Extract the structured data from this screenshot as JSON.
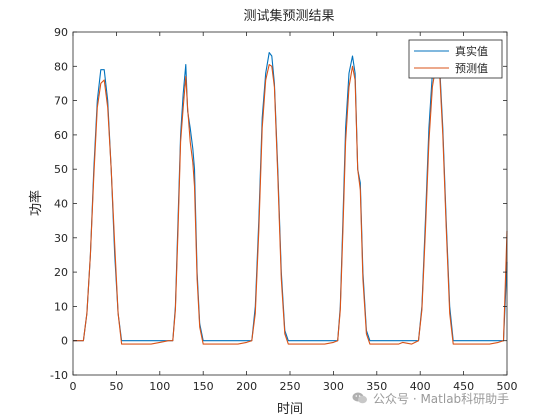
{
  "chart_data": {
    "type": "line",
    "title": "测试集预测结果",
    "xlabel": "时间",
    "ylabel": "功率",
    "xlim": [
      0,
      500
    ],
    "ylim": [
      -10,
      90
    ],
    "x_ticks": [
      0,
      50,
      100,
      150,
      200,
      250,
      300,
      350,
      400,
      450,
      500
    ],
    "y_ticks": [
      -10,
      0,
      10,
      20,
      30,
      40,
      50,
      60,
      70,
      80,
      90
    ],
    "grid": false,
    "legend_position": "top-right",
    "series": [
      {
        "name": "真实值",
        "color": "#0072BD",
        "points": [
          [
            0,
            0
          ],
          [
            8,
            0
          ],
          [
            12,
            0
          ],
          [
            16,
            8
          ],
          [
            20,
            25
          ],
          [
            24,
            50
          ],
          [
            28,
            70
          ],
          [
            32,
            79
          ],
          [
            36,
            79
          ],
          [
            40,
            70
          ],
          [
            44,
            50
          ],
          [
            48,
            25
          ],
          [
            52,
            8
          ],
          [
            56,
            0
          ],
          [
            60,
            0
          ],
          [
            70,
            0
          ],
          [
            80,
            0
          ],
          [
            90,
            0
          ],
          [
            100,
            0
          ],
          [
            110,
            0
          ],
          [
            115,
            0
          ],
          [
            118,
            10
          ],
          [
            121,
            35
          ],
          [
            124,
            60
          ],
          [
            127,
            72
          ],
          [
            130,
            80.5
          ],
          [
            132,
            67
          ],
          [
            135,
            62
          ],
          [
            138,
            56
          ],
          [
            140,
            50
          ],
          [
            143,
            20
          ],
          [
            146,
            5
          ],
          [
            150,
            0
          ],
          [
            160,
            0
          ],
          [
            170,
            0
          ],
          [
            180,
            0
          ],
          [
            190,
            0
          ],
          [
            200,
            0
          ],
          [
            206,
            0
          ],
          [
            210,
            10
          ],
          [
            214,
            35
          ],
          [
            218,
            65
          ],
          [
            222,
            78
          ],
          [
            226,
            84
          ],
          [
            229,
            83
          ],
          [
            232,
            75
          ],
          [
            236,
            50
          ],
          [
            240,
            20
          ],
          [
            244,
            3
          ],
          [
            248,
            0
          ],
          [
            260,
            0
          ],
          [
            270,
            0
          ],
          [
            280,
            0
          ],
          [
            290,
            0
          ],
          [
            300,
            0
          ],
          [
            305,
            0
          ],
          [
            308,
            10
          ],
          [
            311,
            35
          ],
          [
            314,
            62
          ],
          [
            318,
            78
          ],
          [
            322,
            83
          ],
          [
            325,
            78
          ],
          [
            328,
            50
          ],
          [
            331,
            46
          ],
          [
            334,
            20
          ],
          [
            338,
            3
          ],
          [
            342,
            0
          ],
          [
            350,
            0
          ],
          [
            360,
            0
          ],
          [
            370,
            0
          ],
          [
            380,
            0
          ],
          [
            390,
            0
          ],
          [
            398,
            0
          ],
          [
            402,
            10
          ],
          [
            406,
            35
          ],
          [
            410,
            62
          ],
          [
            414,
            78
          ],
          [
            418,
            84
          ],
          [
            422,
            82
          ],
          [
            426,
            62
          ],
          [
            430,
            35
          ],
          [
            434,
            10
          ],
          [
            438,
            0
          ],
          [
            450,
            0
          ],
          [
            460,
            0
          ],
          [
            470,
            0
          ],
          [
            480,
            0
          ],
          [
            490,
            0
          ],
          [
            496,
            0
          ],
          [
            500,
            23
          ]
        ]
      },
      {
        "name": "预测值",
        "color": "#D95319",
        "points": [
          [
            0,
            0
          ],
          [
            8,
            0
          ],
          [
            12,
            0
          ],
          [
            16,
            8
          ],
          [
            20,
            25
          ],
          [
            24,
            48
          ],
          [
            28,
            68
          ],
          [
            32,
            75
          ],
          [
            36,
            76
          ],
          [
            40,
            68
          ],
          [
            44,
            50
          ],
          [
            48,
            28
          ],
          [
            52,
            8
          ],
          [
            56,
            -1
          ],
          [
            62,
            -1
          ],
          [
            70,
            -1
          ],
          [
            80,
            -1
          ],
          [
            90,
            -1
          ],
          [
            100,
            -0.5
          ],
          [
            110,
            0
          ],
          [
            115,
            0
          ],
          [
            118,
            9
          ],
          [
            121,
            32
          ],
          [
            124,
            58
          ],
          [
            127,
            68
          ],
          [
            130,
            77
          ],
          [
            132,
            68
          ],
          [
            135,
            58
          ],
          [
            138,
            52
          ],
          [
            140,
            45
          ],
          [
            143,
            18
          ],
          [
            146,
            4
          ],
          [
            150,
            -1
          ],
          [
            160,
            -1
          ],
          [
            170,
            -1
          ],
          [
            180,
            -1
          ],
          [
            190,
            -1
          ],
          [
            200,
            -0.5
          ],
          [
            206,
            0
          ],
          [
            210,
            8
          ],
          [
            214,
            32
          ],
          [
            218,
            62
          ],
          [
            222,
            76
          ],
          [
            226,
            80.5
          ],
          [
            229,
            80
          ],
          [
            232,
            74
          ],
          [
            236,
            48
          ],
          [
            240,
            18
          ],
          [
            244,
            2
          ],
          [
            248,
            -1
          ],
          [
            260,
            -1
          ],
          [
            270,
            -1
          ],
          [
            280,
            -1
          ],
          [
            290,
            -1
          ],
          [
            300,
            -0.5
          ],
          [
            305,
            0
          ],
          [
            308,
            9
          ],
          [
            311,
            32
          ],
          [
            314,
            58
          ],
          [
            318,
            74
          ],
          [
            322,
            80
          ],
          [
            325,
            76
          ],
          [
            328,
            50
          ],
          [
            331,
            44
          ],
          [
            334,
            18
          ],
          [
            338,
            2
          ],
          [
            342,
            -1
          ],
          [
            350,
            -1
          ],
          [
            360,
            -1
          ],
          [
            370,
            -1
          ],
          [
            375,
            -1
          ],
          [
            380,
            -0.5
          ],
          [
            390,
            -1
          ],
          [
            398,
            0
          ],
          [
            402,
            9
          ],
          [
            406,
            32
          ],
          [
            410,
            58
          ],
          [
            414,
            74
          ],
          [
            418,
            80
          ],
          [
            422,
            80
          ],
          [
            426,
            60
          ],
          [
            430,
            33
          ],
          [
            434,
            8
          ],
          [
            438,
            -1
          ],
          [
            450,
            -1
          ],
          [
            460,
            -1
          ],
          [
            470,
            -1
          ],
          [
            480,
            -1
          ],
          [
            490,
            -0.5
          ],
          [
            496,
            0
          ],
          [
            500,
            32
          ]
        ]
      }
    ]
  },
  "watermark": {
    "text": "公众号 · Matlab科研助手"
  }
}
